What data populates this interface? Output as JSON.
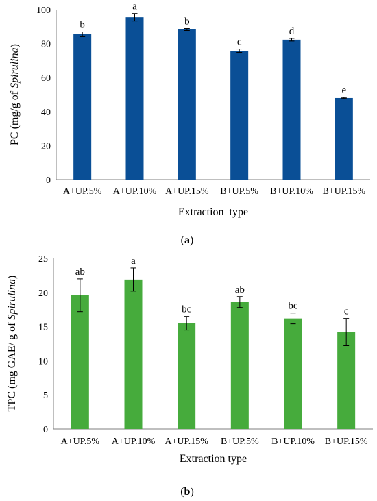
{
  "chart_data": [
    {
      "type": "bar",
      "panel_label": "a",
      "ylabel": "PC (mg/g of Spirulina)",
      "ylabel_parts": [
        "PC (mg/g of ",
        "Spirulina",
        ")"
      ],
      "xlabel": "Extraction  type",
      "categories": [
        "A+UP.5%",
        "A+UP.10%",
        "A+UP.15%",
        "B+UP.5%",
        "B+UP.10%",
        "B+UP.15%"
      ],
      "values": [
        85.5,
        95.5,
        88.3,
        75.8,
        82.3,
        48.0
      ],
      "errors": [
        1.4,
        2.2,
        0.6,
        1.0,
        0.8,
        0.3
      ],
      "significance": [
        "b",
        "a",
        "b",
        "c",
        "d",
        "e"
      ],
      "ylim": [
        0,
        100
      ],
      "yticks": [
        0,
        20,
        40,
        60,
        80,
        100
      ],
      "grid": false,
      "bar_color": "#0a4f96"
    },
    {
      "type": "bar",
      "panel_label": "b",
      "ylabel": "TPC (mg GAE/ g of Spirulina)",
      "ylabel_parts": [
        "TPC (mg GAE/ g of ",
        "Spirulina",
        ")"
      ],
      "xlabel": "Extraction type",
      "categories": [
        "A+UP.5%",
        "A+UP.10%",
        "A+UP.15%",
        "B+UP.5%",
        "B+UP.10%",
        "B+UP.15%"
      ],
      "values": [
        19.6,
        21.9,
        15.5,
        18.6,
        16.2,
        14.2
      ],
      "errors": [
        2.4,
        1.7,
        1.0,
        0.8,
        0.8,
        2.0
      ],
      "significance": [
        "ab",
        "a",
        "bc",
        "ab",
        "bc",
        "c"
      ],
      "ylim": [
        0,
        25
      ],
      "yticks": [
        0,
        5,
        10,
        15,
        20,
        25
      ],
      "grid": false,
      "bar_color": "#46ab3c"
    }
  ]
}
